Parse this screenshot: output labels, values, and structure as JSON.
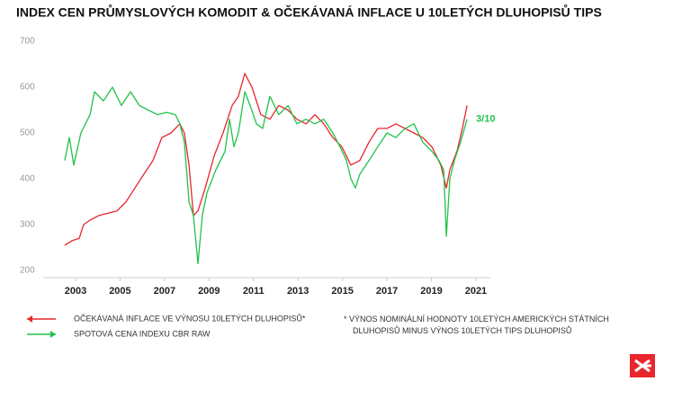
{
  "chart_data": {
    "type": "line",
    "title": "INDEX CEN PRŮMYSLOVÝCH KOMODIT & OČEKÁVANÁ INFLACE U 10LETÝCH DLUHOPISŮ TIPS",
    "annotation": "3/10",
    "footnote": "* VÝNOS NOMINÁLNÍ HODNOTY 10LETÝCH AMERICKÝCH STÁTNÍCH DLUHOPISŮ MINUS VÝNOS 10LETÝCH TIPS DLUHOPISŮ",
    "xlim": [
      2002.1,
      2021.9
    ],
    "xticks": [
      2003,
      2005,
      2007,
      2009,
      2011,
      2013,
      2015,
      2017,
      2019,
      2021
    ],
    "ylim": [
      200,
      700
    ],
    "yticks": [
      200,
      300,
      400,
      500,
      600,
      700
    ],
    "grid": false,
    "series": [
      {
        "name": "OČEKÁVANÁ INFLACE VE VÝNOSU 10LETÝCH DLUHOPISŮ*",
        "color": "#e8262b",
        "x": [
          2002.51,
          2002.84,
          2003.16,
          2003.36,
          2003.65,
          2004.05,
          2004.46,
          2004.86,
          2005.27,
          2005.67,
          2006.07,
          2006.48,
          2006.88,
          2007.29,
          2007.69,
          2007.89,
          2008.1,
          2008.3,
          2008.5,
          2008.83,
          2009.23,
          2009.63,
          2010.04,
          2010.32,
          2010.61,
          2010.93,
          2011.33,
          2011.74,
          2012.14,
          2012.55,
          2012.95,
          2013.36,
          2013.76,
          2014.16,
          2014.57,
          2014.97,
          2015.38,
          2015.78,
          2016.19,
          2016.59,
          2017.0,
          2017.4,
          2017.81,
          2018.21,
          2018.61,
          2019.02,
          2019.42,
          2019.67,
          2019.83,
          2020.15,
          2020.39,
          2020.6
        ],
        "values": [
          255,
          265,
          270,
          300,
          310,
          320,
          325,
          330,
          350,
          380,
          410,
          440,
          490,
          500,
          520,
          500,
          430,
          320,
          330,
          380,
          450,
          500,
          560,
          580,
          630,
          600,
          540,
          530,
          560,
          550,
          530,
          520,
          540,
          520,
          490,
          470,
          430,
          440,
          480,
          510,
          510,
          520,
          510,
          500,
          490,
          470,
          430,
          380,
          420,
          460,
          510,
          560
        ]
      },
      {
        "name": "SPOTOVÁ CENA INDEXU CBR RAW",
        "color": "#1fc24a",
        "x": [
          2002.51,
          2002.72,
          2002.92,
          2003.24,
          2003.65,
          2003.85,
          2004.25,
          2004.66,
          2005.06,
          2005.47,
          2005.87,
          2006.27,
          2006.68,
          2007.09,
          2007.49,
          2007.69,
          2007.89,
          2008.1,
          2008.3,
          2008.5,
          2008.7,
          2008.91,
          2009.31,
          2009.72,
          2009.92,
          2010.12,
          2010.32,
          2010.61,
          2010.85,
          2011.13,
          2011.41,
          2011.74,
          2012.14,
          2012.55,
          2012.95,
          2013.36,
          2013.76,
          2014.16,
          2014.57,
          2014.89,
          2015.18,
          2015.38,
          2015.58,
          2015.78,
          2016.19,
          2016.59,
          2017.0,
          2017.4,
          2017.81,
          2018.21,
          2018.61,
          2019.02,
          2019.34,
          2019.55,
          2019.67,
          2019.83,
          2020.03,
          2020.31,
          2020.6
        ],
        "values": [
          440,
          490,
          430,
          500,
          540,
          590,
          570,
          600,
          560,
          590,
          560,
          550,
          540,
          545,
          540,
          520,
          480,
          350,
          320,
          215,
          320,
          370,
          420,
          460,
          530,
          470,
          500,
          590,
          560,
          520,
          510,
          580,
          540,
          560,
          520,
          530,
          520,
          530,
          500,
          470,
          440,
          400,
          380,
          410,
          440,
          470,
          500,
          490,
          510,
          520,
          480,
          460,
          440,
          420,
          275,
          400,
          440,
          480,
          530
        ]
      }
    ]
  }
}
